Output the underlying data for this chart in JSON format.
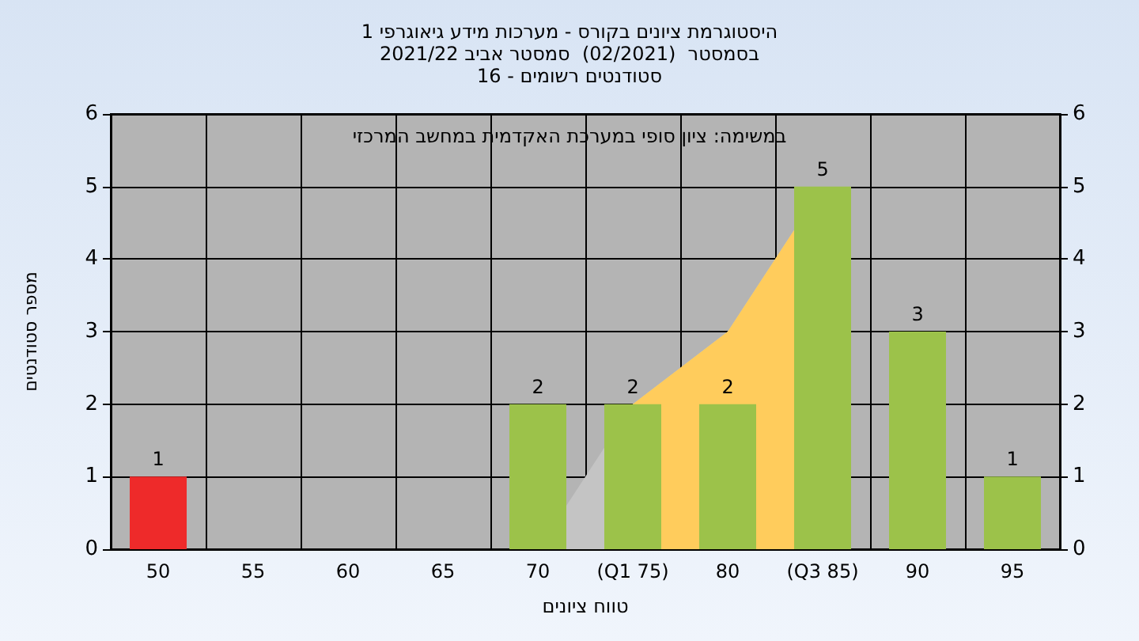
{
  "chart_data": {
    "type": "bar",
    "title": "היסטוגרמת ציונים בקורס - מערכות מידע גיאוגרפי 1",
    "subtitle": "בסמסטר  (02/2021)  סמסטר אביב 2021/22\nסטודנטים רשומים - 16",
    "xlabel": "טווח ציונים",
    "ylabel": "מספר סטודנטים",
    "annotations": [
      "במשימה: ציון סופי במערכת האקדמית במחשב המרכזי"
    ],
    "categories": [
      "50",
      "55",
      "60",
      "65",
      "70",
      "(Q1 75)",
      "80",
      "(Q3 85)",
      "90",
      "95"
    ],
    "series": [
      {
        "type": "area",
        "color": "#c4c4c4",
        "values": [
          null,
          null,
          null,
          null,
          0,
          2,
          3,
          5,
          null,
          null
        ]
      },
      {
        "type": "area",
        "color": "#ffcc5c",
        "values": [
          null,
          null,
          null,
          null,
          null,
          2,
          3,
          5,
          null,
          null
        ]
      },
      {
        "colors": [
          "#ee2a2a",
          "#9cc24a",
          "#9cc24a",
          "#9cc24a",
          "#9cc24a",
          "#9cc24a",
          "#9cc24a",
          "#9cc24a",
          "#9cc24a",
          "#9cc24a"
        ],
        "values": [
          1,
          0,
          0,
          0,
          2,
          2,
          2,
          5,
          3,
          1
        ],
        "value_labels": [
          "1",
          null,
          null,
          null,
          "2",
          "2",
          "2",
          "5",
          "3",
          "1"
        ]
      }
    ],
    "ylim": [
      0,
      6
    ],
    "yticks": [
      0,
      1,
      2,
      3,
      4,
      5,
      6
    ],
    "y2lim": [
      0,
      6
    ],
    "y2ticks": [
      0,
      1,
      2,
      3,
      4,
      5,
      6
    ],
    "grid": true
  }
}
